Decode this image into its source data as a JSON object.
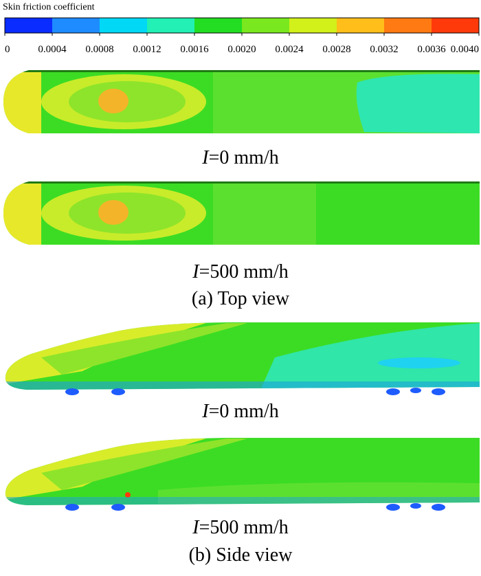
{
  "colorbar": {
    "title": "Skin friction coefficient",
    "ticks": [
      "0",
      "0.0004",
      "0.0008",
      "0.0012",
      "0.0016",
      "0.0020",
      "0.0024",
      "0.0028",
      "0.0032",
      "0.0036",
      "0.0040"
    ],
    "colors": [
      "#0a2cff",
      "#1e8cff",
      "#00d8f5",
      "#22f0b4",
      "#22dd22",
      "#7ae81e",
      "#d2f01a",
      "#ffbe1a",
      "#ff7a12",
      "#ff3a0a"
    ]
  },
  "panels": [
    {
      "caption": {
        "variable": "I",
        "text": "=0 mm/h"
      }
    },
    {
      "caption": {
        "variable": "I",
        "text": "=500 mm/h"
      }
    },
    {
      "caption": {
        "variable": "I",
        "text": "=0 mm/h"
      }
    },
    {
      "caption": {
        "variable": "I",
        "text": "=500 mm/h"
      }
    }
  ],
  "figure_labels": [
    "(a) Top view",
    "(b) Side view"
  ]
}
